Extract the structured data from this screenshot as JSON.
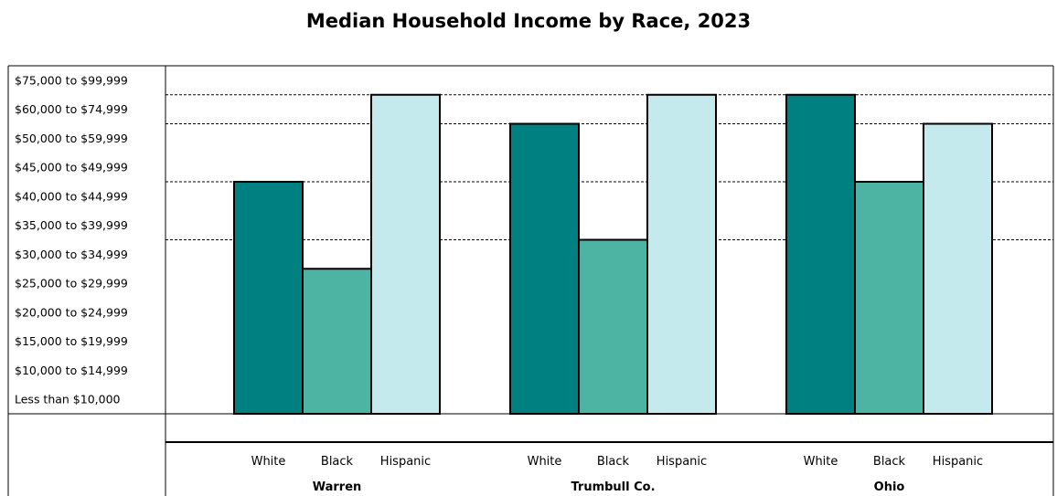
{
  "chart_data": {
    "type": "bar",
    "title": "Median Household Income by Race, 2023",
    "y_categories": [
      "Less than $10,000",
      "$10,000 to $14,999",
      "$15,000 to $19,999",
      "$20,000 to $24,999",
      "$25,000 to $29,999",
      "$30,000 to $34,999",
      "$35,000 to $39,999",
      "$40,000 to $44,999",
      "$45,000 to $49,999",
      "$50,000 to $59,999",
      "$60,000 to $74,999",
      "$75,000 to $99,999"
    ],
    "groups": [
      {
        "name": "Warren",
        "bars": [
          {
            "label": "White",
            "value": "$40,000 to $44,999"
          },
          {
            "label": "Black",
            "value": "$25,000 to $29,999"
          },
          {
            "label": "Hispanic",
            "value": "$60,000 to $74,999"
          }
        ]
      },
      {
        "name": "Trumbull Co.",
        "bars": [
          {
            "label": "White",
            "value": "$50,000 to $59,999"
          },
          {
            "label": "Black",
            "value": "$30,000 to $34,999"
          },
          {
            "label": "Hispanic",
            "value": "$60,000 to $74,999"
          }
        ]
      },
      {
        "name": "Ohio",
        "bars": [
          {
            "label": "White",
            "value": "$60,000 to $74,999"
          },
          {
            "label": "Black",
            "value": "$40,000 to $44,999"
          },
          {
            "label": "Hispanic",
            "value": "$50,000 to $59,999"
          }
        ]
      }
    ],
    "colors": {
      "White": "#008080",
      "Black": "#4db3a2",
      "Hispanic": "#c5eaee"
    },
    "reference_lines": [
      "$30,000 to $34,999",
      "$40,000 to $44,999",
      "$50,000 to $59,999",
      "$60,000 to $74,999"
    ]
  }
}
